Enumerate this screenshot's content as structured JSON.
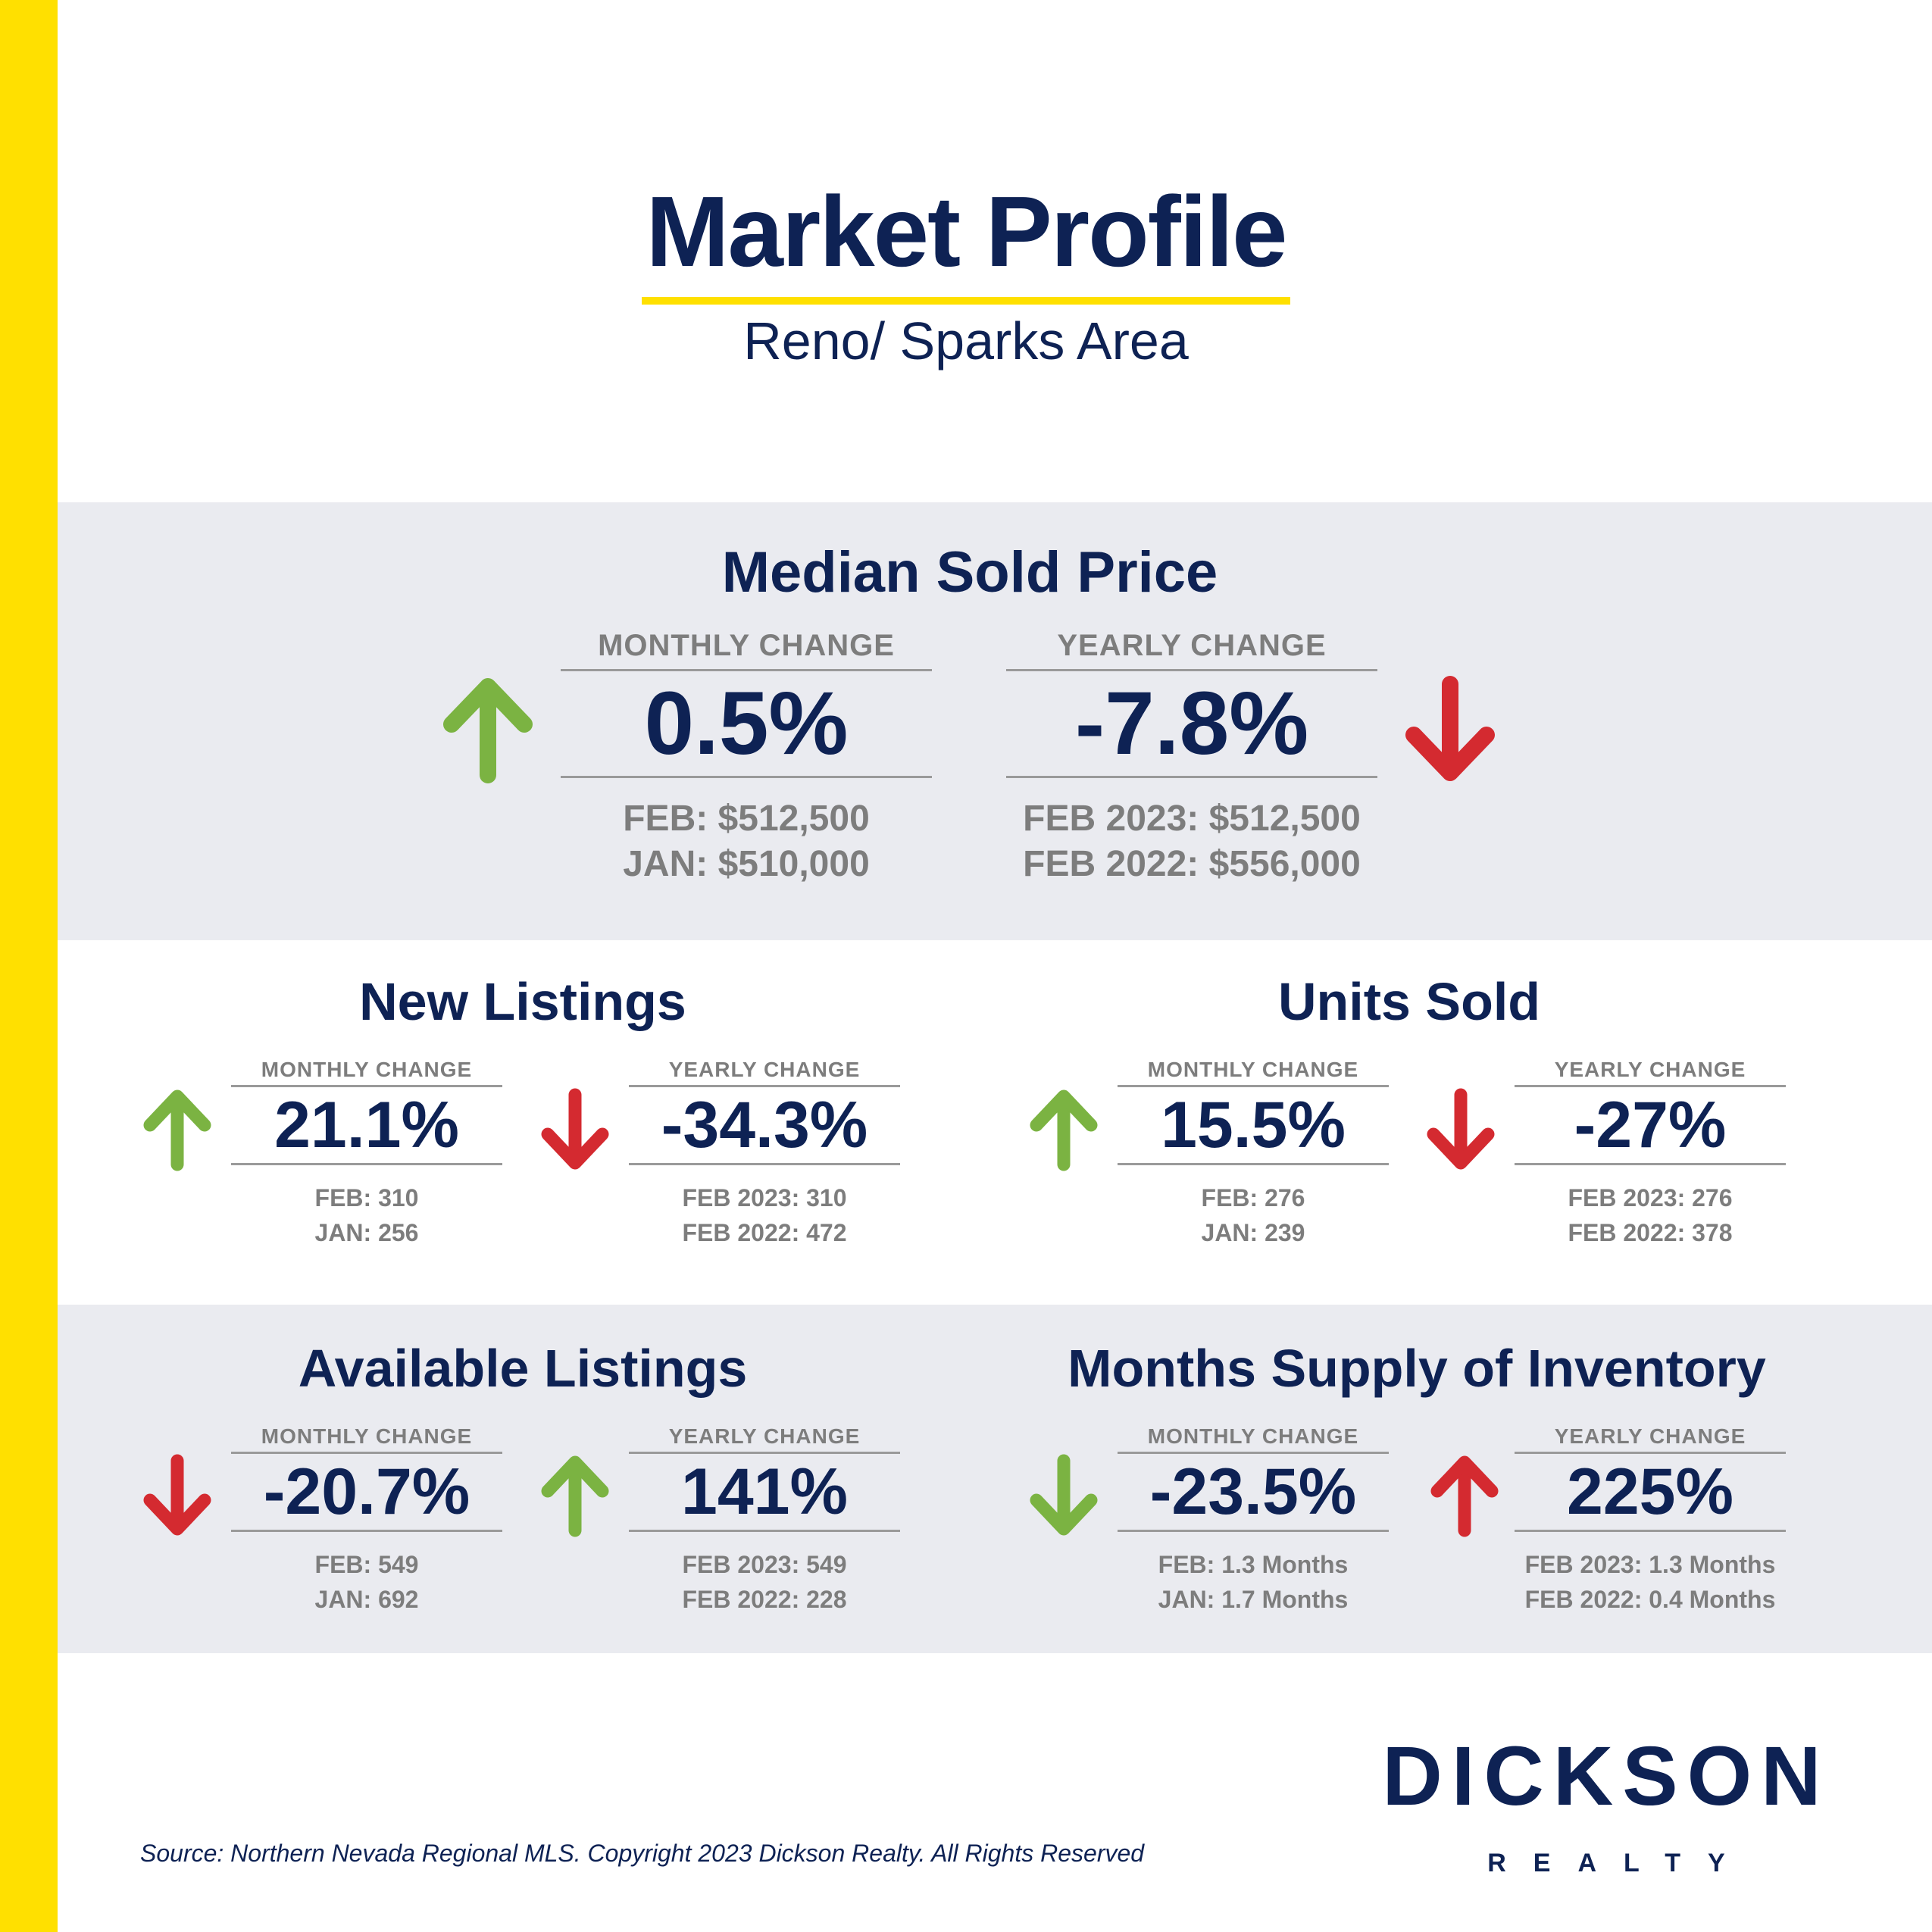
{
  "header": {
    "title": "Market Profile",
    "subtitle": "Reno/ Sparks Area"
  },
  "colors": {
    "navy": "#0e2254",
    "yellow": "#ffe000",
    "up_green": "#7bb342",
    "down_red": "#d42a30",
    "gray_text": "#7d7d7d",
    "band_gray": "#eaebf0"
  },
  "sections": {
    "median_sold_price": {
      "title": "Median Sold Price",
      "monthly": {
        "label": "MONTHLY CHANGE",
        "value": "0.5%",
        "line1": "FEB: $512,500",
        "line2": "JAN: $510,000",
        "arrow": "up-green"
      },
      "yearly": {
        "label": "YEARLY CHANGE",
        "value": "-7.8%",
        "line1": "FEB 2023: $512,500",
        "line2": "FEB 2022: $556,000",
        "arrow": "down-red"
      }
    },
    "new_listings": {
      "title": "New Listings",
      "monthly": {
        "label": "MONTHLY CHANGE",
        "value": "21.1%",
        "line1": "FEB: 310",
        "line2": "JAN: 256",
        "arrow": "up-green"
      },
      "yearly": {
        "label": "YEARLY CHANGE",
        "value": "-34.3%",
        "line1": "FEB 2023: 310",
        "line2": "FEB 2022: 472",
        "arrow": "down-red"
      }
    },
    "units_sold": {
      "title": "Units Sold",
      "monthly": {
        "label": "MONTHLY CHANGE",
        "value": "15.5%",
        "line1": "FEB: 276",
        "line2": "JAN: 239",
        "arrow": "up-green"
      },
      "yearly": {
        "label": "YEARLY CHANGE",
        "value": "-27%",
        "line1": "FEB 2023: 276",
        "line2": "FEB 2022: 378",
        "arrow": "down-red"
      }
    },
    "available_listings": {
      "title": "Available Listings",
      "monthly": {
        "label": "MONTHLY CHANGE",
        "value": "-20.7%",
        "line1": "FEB: 549",
        "line2": "JAN: 692",
        "arrow": "down-red"
      },
      "yearly": {
        "label": "YEARLY CHANGE",
        "value": "141%",
        "line1": "FEB 2023: 549",
        "line2": "FEB 2022: 228",
        "arrow": "up-green"
      }
    },
    "months_supply": {
      "title": "Months Supply of Inventory",
      "monthly": {
        "label": "MONTHLY CHANGE",
        "value": "-23.5%",
        "line1": "FEB: 1.3 Months",
        "line2": "JAN: 1.7 Months",
        "arrow": "down-green"
      },
      "yearly": {
        "label": "YEARLY CHANGE",
        "value": "225%",
        "line1": "FEB 2023: 1.3 Months",
        "line2": "FEB 2022: 0.4 Months",
        "arrow": "up-red"
      }
    }
  },
  "brand": {
    "name": "DICKSON",
    "sub": "REALTY"
  },
  "footer": {
    "source": "Source: Northern Nevada Regional MLS. Copyright 2023 Dickson Realty. All Rights Reserved"
  }
}
